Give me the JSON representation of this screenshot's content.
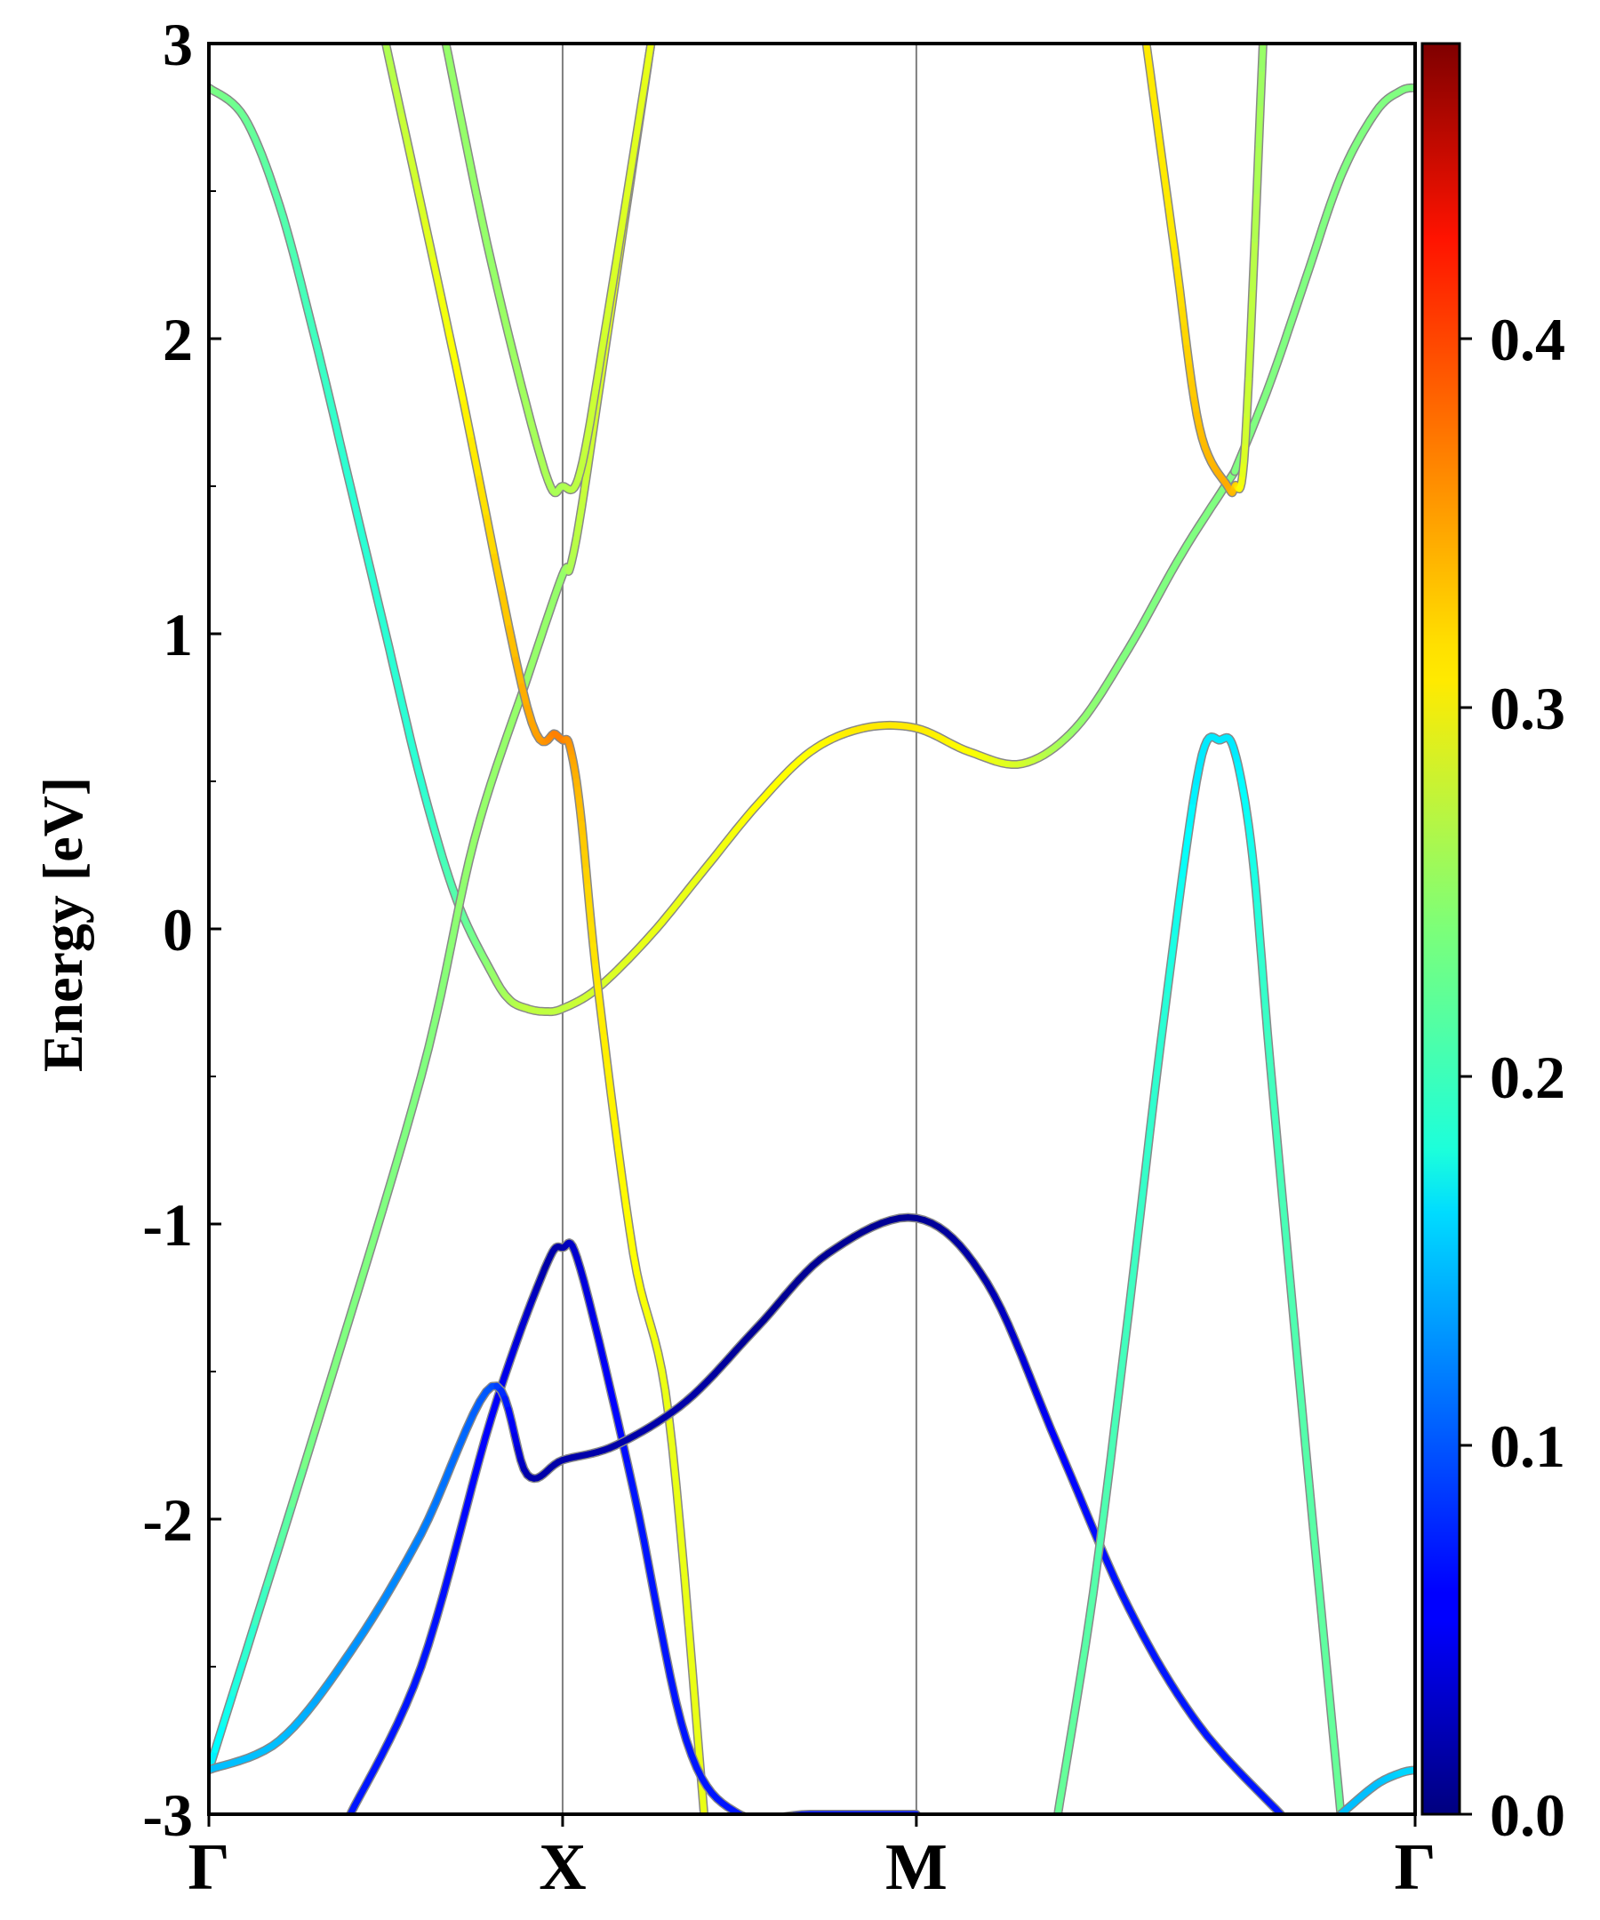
{
  "chart_data": {
    "type": "line",
    "title": "",
    "xlabel": "",
    "ylabel": "Energy [eV]",
    "ylim": [
      -3,
      3
    ],
    "yticks": [
      "3",
      "2",
      "1",
      "0",
      "-1",
      "-2",
      "-3"
    ],
    "ytick_values": [
      3,
      2,
      1,
      0,
      -1,
      -2,
      -3
    ],
    "xtick_labels": [
      "Γ",
      "X",
      "M",
      "Γ"
    ],
    "xtick_positions": [
      0,
      1,
      2,
      3.41
    ],
    "xlim": [
      0,
      3.41
    ],
    "colorbar": {
      "colormap": "jet",
      "range": [
        0,
        0.48
      ],
      "tick_labels": [
        "0.0",
        "0.1",
        "0.2",
        "0.3",
        "0.4"
      ],
      "tick_values": [
        0.0,
        0.1,
        0.2,
        0.3,
        0.4
      ]
    },
    "series": [
      {
        "x": [
          0,
          0.1,
          0.2,
          0.3,
          0.4,
          0.5,
          0.6,
          0.7,
          0.8,
          0.85,
          0.9,
          0.95,
          1.0,
          1.1,
          1.25,
          1.4,
          1.55,
          1.7,
          1.85,
          2.0,
          2.15,
          2.3,
          2.45,
          2.6,
          2.75,
          2.9
        ],
        "y": [
          2.85,
          2.75,
          2.45,
          2.0,
          1.5,
          1.0,
          0.5,
          0.1,
          -0.15,
          -0.24,
          -0.27,
          -0.28,
          -0.27,
          -0.2,
          -0.02,
          0.2,
          0.42,
          0.6,
          0.68,
          0.68,
          0.6,
          0.56,
          0.68,
          0.95,
          1.27,
          1.55
        ],
        "weights": [
          0.24,
          0.23,
          0.22,
          0.21,
          0.2,
          0.2,
          0.2,
          0.22,
          0.25,
          0.26,
          0.27,
          0.27,
          0.27,
          0.28,
          0.29,
          0.29,
          0.3,
          0.3,
          0.31,
          0.31,
          0.3,
          0.28,
          0.25,
          0.24,
          0.24,
          0.24
        ]
      },
      {
        "x": [
          2.9,
          3.0,
          3.1,
          3.2,
          3.3,
          3.37,
          3.41
        ],
        "y": [
          1.55,
          1.85,
          2.2,
          2.55,
          2.77,
          2.84,
          2.85
        ],
        "weights": [
          0.24,
          0.24,
          0.24,
          0.24,
          0.24,
          0.24,
          0.24
        ]
      },
      {
        "x": [
          0,
          0.3,
          0.6,
          0.75,
          0.9,
          1.0,
          1.02,
          1.05,
          1.1,
          1.2,
          1.25
        ],
        "y": [
          -2.85,
          -1.7,
          -0.5,
          0.3,
          0.85,
          1.2,
          1.22,
          1.4,
          1.8,
          2.6,
          3.0
        ],
        "weights": [
          0.17,
          0.24,
          0.24,
          0.25,
          0.25,
          0.25,
          0.26,
          0.27,
          0.28,
          0.3,
          0.3
        ]
      },
      {
        "x": [
          0.5,
          0.7,
          0.9,
          0.98,
          1.0,
          1.02,
          1.05,
          1.1,
          1.2,
          1.3,
          1.4
        ],
        "y": [
          3.0,
          1.9,
          0.75,
          0.66,
          0.64,
          0.62,
          0.4,
          -0.2,
          -1.1,
          -1.65,
          -3.0
        ],
        "weights": [
          0.26,
          0.3,
          0.34,
          0.36,
          0.36,
          0.35,
          0.33,
          0.31,
          0.3,
          0.29,
          0.29
        ]
      },
      {
        "x": [
          0.67,
          0.8,
          0.95,
          1.0,
          1.05,
          1.13,
          1.25
        ],
        "y": [
          3.0,
          2.25,
          1.55,
          1.5,
          1.55,
          2.1,
          3.0
        ],
        "weights": [
          0.25,
          0.25,
          0.26,
          0.26,
          0.27,
          0.28,
          0.29
        ]
      },
      {
        "x": [
          0.4,
          0.6,
          0.8,
          0.95,
          1.0,
          1.05,
          1.2,
          1.35,
          1.5,
          1.7,
          2.0
        ],
        "y": [
          -3.0,
          -2.5,
          -1.65,
          -1.15,
          -1.08,
          -1.15,
          -1.9,
          -2.75,
          -3.0,
          -3.0,
          -3.0
        ],
        "weights": [
          0.07,
          0.07,
          0.06,
          0.02,
          0.02,
          0.04,
          0.07,
          0.07,
          0.07,
          0.07,
          0.07
        ]
      },
      {
        "x": [
          0,
          0.2,
          0.4,
          0.6,
          0.8,
          0.9,
          1.0,
          1.15,
          1.35,
          1.55,
          1.75,
          2.0,
          2.2,
          2.4,
          2.6,
          2.8,
          3.03
        ],
        "y": [
          -2.85,
          -2.75,
          -2.45,
          -2.05,
          -1.55,
          -1.85,
          -1.8,
          -1.75,
          -1.6,
          -1.35,
          -1.1,
          -0.98,
          -1.2,
          -1.75,
          -2.3,
          -2.7,
          -3.0
        ],
        "weights": [
          0.15,
          0.15,
          0.13,
          0.12,
          0.1,
          0.02,
          0.02,
          0.02,
          0.02,
          0.01,
          0.01,
          0.01,
          0.02,
          0.06,
          0.07,
          0.07,
          0.07
        ]
      },
      {
        "x": [
          2.4,
          2.5,
          2.6,
          2.7,
          2.8,
          2.86,
          2.9,
          2.95,
          3.0,
          3.1,
          3.2
        ],
        "y": [
          -3.0,
          -2.25,
          -1.3,
          -0.3,
          0.55,
          0.64,
          0.6,
          0.25,
          -0.45,
          -1.75,
          -3.0
        ],
        "weights": [
          0.23,
          0.22,
          0.21,
          0.2,
          0.17,
          0.17,
          0.17,
          0.19,
          0.21,
          0.22,
          0.23
        ]
      },
      {
        "x": [
          2.65,
          2.73,
          2.8,
          2.88,
          2.9,
          2.93,
          2.98
        ],
        "y": [
          3.0,
          2.3,
          1.7,
          1.5,
          1.5,
          1.65,
          3.0
        ],
        "weights": [
          0.31,
          0.31,
          0.33,
          0.34,
          0.33,
          0.28,
          0.25
        ]
      },
      {
        "x": [
          3.2,
          3.3,
          3.37,
          3.41
        ],
        "y": [
          -3.0,
          -2.9,
          -2.86,
          -2.85
        ],
        "weights": [
          0.15,
          0.15,
          0.16,
          0.16
        ]
      }
    ]
  }
}
